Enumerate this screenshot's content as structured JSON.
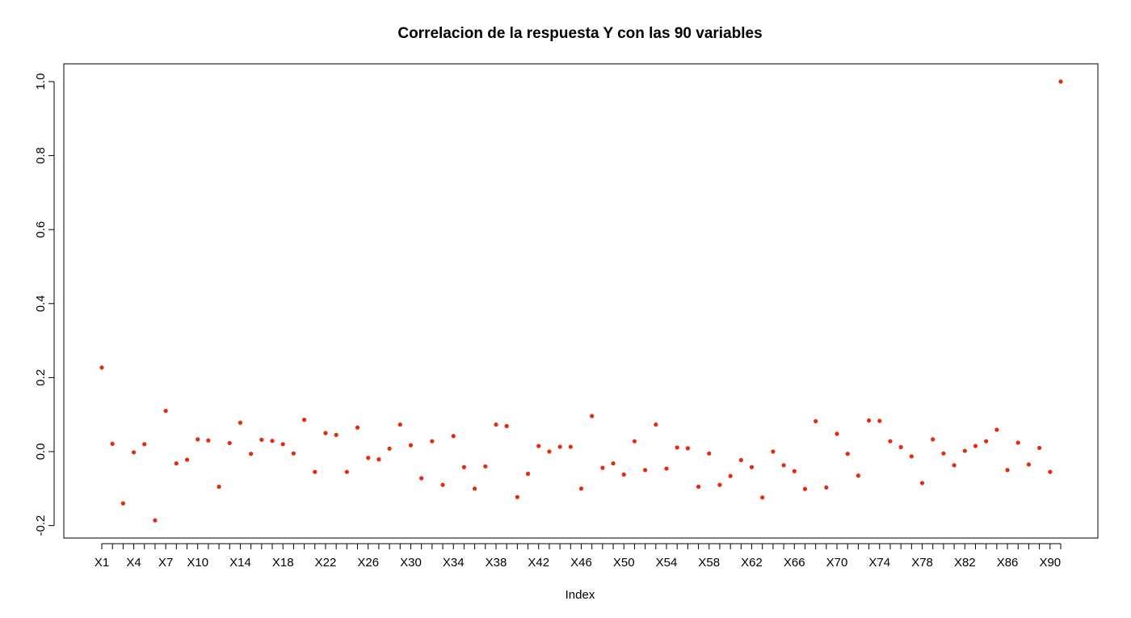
{
  "chart_data": {
    "type": "scatter",
    "title": "Correlacion de la respuesta Y con las 90 variables",
    "xlabel": "Index",
    "ylabel": "",
    "ylim": [
      -0.2,
      1.0
    ],
    "y_ticks": [
      "-0.2",
      "0.0",
      "0.2",
      "0.4",
      "0.6",
      "0.8",
      "1.0"
    ],
    "x_tick_labels": [
      "X1",
      "X4",
      "X7",
      "X10",
      "X14",
      "X18",
      "X22",
      "X26",
      "X30",
      "X34",
      "X38",
      "X42",
      "X46",
      "X50",
      "X54",
      "X58",
      "X62",
      "X66",
      "X70",
      "X74",
      "X78",
      "X82",
      "X86",
      "X90"
    ],
    "x_tick_label_index": [
      1,
      4,
      7,
      10,
      14,
      18,
      22,
      26,
      30,
      34,
      38,
      42,
      46,
      50,
      54,
      58,
      62,
      66,
      70,
      74,
      78,
      82,
      86,
      90
    ],
    "point_color": "#e8290b",
    "x": [
      1,
      2,
      3,
      4,
      5,
      6,
      7,
      8,
      9,
      10,
      11,
      12,
      13,
      14,
      15,
      16,
      17,
      18,
      19,
      20,
      21,
      22,
      23,
      24,
      25,
      26,
      27,
      28,
      29,
      30,
      31,
      32,
      33,
      34,
      35,
      36,
      37,
      38,
      39,
      40,
      41,
      42,
      43,
      44,
      45,
      46,
      47,
      48,
      49,
      50,
      51,
      52,
      53,
      54,
      55,
      56,
      57,
      58,
      59,
      60,
      61,
      62,
      63,
      64,
      65,
      66,
      67,
      68,
      69,
      70,
      71,
      72,
      73,
      74,
      75,
      76,
      77,
      78,
      79,
      80,
      81,
      82,
      83,
      84,
      85,
      86,
      87,
      88,
      89,
      90,
      91
    ],
    "values": [
      0.227,
      0.021,
      -0.14,
      -0.002,
      0.02,
      -0.186,
      0.11,
      -0.032,
      -0.022,
      0.033,
      0.03,
      -0.095,
      0.023,
      0.078,
      -0.006,
      0.032,
      0.029,
      0.02,
      -0.005,
      0.086,
      -0.055,
      0.05,
      0.045,
      -0.055,
      0.065,
      -0.017,
      -0.021,
      0.008,
      0.073,
      0.017,
      -0.072,
      0.028,
      -0.09,
      0.042,
      -0.042,
      -0.1,
      -0.04,
      0.073,
      0.069,
      -0.123,
      -0.06,
      0.015,
      0.0,
      0.013,
      0.013,
      -0.1,
      0.096,
      -0.044,
      -0.032,
      -0.062,
      0.028,
      -0.05,
      0.073,
      -0.046,
      0.011,
      0.009,
      -0.095,
      -0.005,
      -0.09,
      -0.066,
      -0.023,
      -0.042,
      -0.124,
      0.0,
      -0.037,
      -0.053,
      -0.101,
      0.082,
      -0.097,
      0.048,
      -0.006,
      -0.065,
      0.084,
      0.083,
      0.028,
      0.012,
      -0.013,
      -0.085,
      0.033,
      -0.005,
      -0.037,
      0.002,
      0.015,
      0.028,
      0.059,
      -0.05,
      0.024,
      -0.035,
      0.01,
      -0.055,
      1.0
    ]
  }
}
